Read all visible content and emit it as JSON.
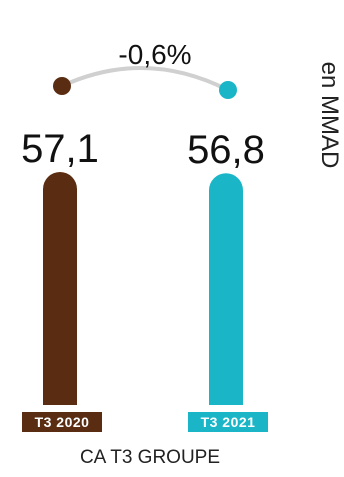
{
  "chart_data": {
    "type": "bar",
    "title": "CA T3 GROUPE",
    "unit": "en MMAD",
    "categories": [
      "T3 2020",
      "T3 2021"
    ],
    "values": [
      57.1,
      56.8
    ],
    "value_labels": [
      "57,1",
      "56,8"
    ],
    "change_label": "-0,6%",
    "colors": [
      "#5a2d12",
      "#1ab6c8"
    ],
    "connector_color": "#d0d0d0",
    "grid": false,
    "legend": "none"
  }
}
